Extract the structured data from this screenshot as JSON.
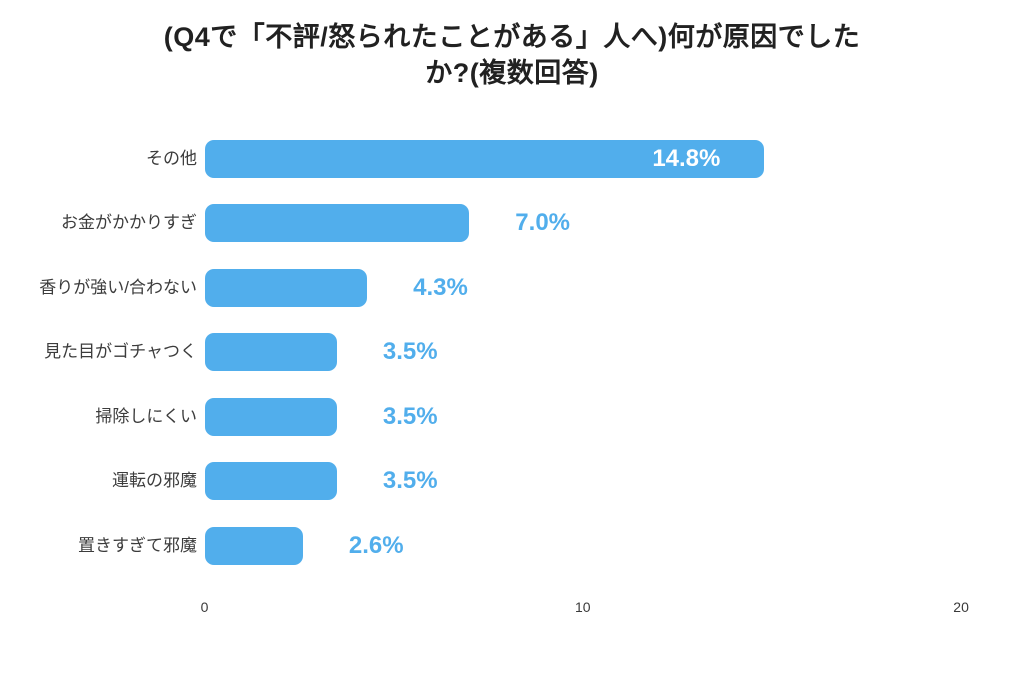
{
  "page": {
    "background": "#ffffff"
  },
  "chart_data": {
    "type": "bar",
    "orientation": "horizontal",
    "title": "(Q4で「不評/怒られたことがある」人へ)何が原因でしたか?(複数回答)",
    "title_lines": [
      "(Q4で「不評/怒られたことがある」人へ)何が原因でした",
      "か?(複数回答)"
    ],
    "categories": [
      "その他",
      "お金がかかりすぎ",
      "香りが強い/合わない",
      "見た目がゴチャつく",
      "掃除しにくい",
      "運転の邪魔",
      "置きすぎて邪魔"
    ],
    "values": [
      14.8,
      7.0,
      4.3,
      3.5,
      3.5,
      3.5,
      2.6
    ],
    "value_labels": [
      "14.8%",
      "7.0%",
      "4.3%",
      "3.5%",
      "3.5%",
      "3.5%",
      "2.6%"
    ],
    "value_label_placement": [
      "inside",
      "outside",
      "outside",
      "outside",
      "outside",
      "outside",
      "outside"
    ],
    "xlim": [
      0,
      20
    ],
    "xticks": [
      0,
      10,
      20
    ],
    "xtick_labels": [
      "0",
      "10",
      "20"
    ],
    "grid": false,
    "legend": false,
    "colors": {
      "bar": "#51aeec",
      "value_label_inside": "#ffffff",
      "value_label_outside": "#51aeec",
      "title": "#212121",
      "category_label": "#3c3c3c",
      "tick_label": "#3a3a3a",
      "background": "#ffffff"
    }
  }
}
